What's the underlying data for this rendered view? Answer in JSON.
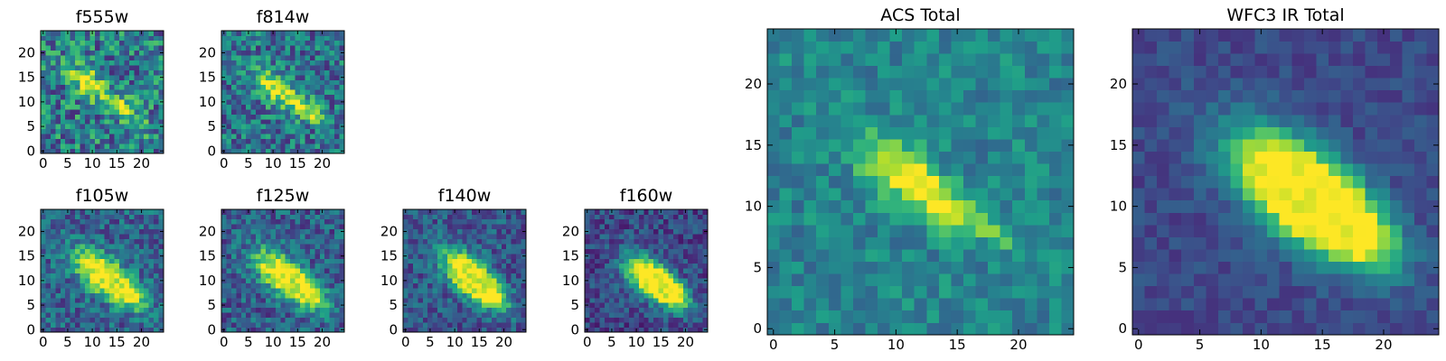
{
  "figure": {
    "colormap": "viridis"
  },
  "chart_data": [
    {
      "type": "heatmap",
      "title": "f555w",
      "xlim": [
        -0.5,
        24.5
      ],
      "ylim": [
        -0.5,
        24.5
      ],
      "xticks": [
        0,
        5,
        10,
        15,
        20
      ],
      "yticks": [
        0,
        5,
        10,
        15,
        20
      ],
      "xlabel": "",
      "ylabel": "",
      "source": {
        "knots": [
          [
            9,
            14,
            1.0,
            3.0
          ],
          [
            16,
            9,
            0.85,
            2.4
          ],
          [
            20,
            5,
            0.45,
            1.6
          ]
        ],
        "axis": [
          16,
          9
        ],
        "noise": 0.3,
        "floor": 0.42,
        "seed": 11,
        "shape": [
          25,
          25
        ]
      }
    },
    {
      "type": "heatmap",
      "title": "f814w",
      "xlim": [
        -0.5,
        24.5
      ],
      "ylim": [
        -0.5,
        24.5
      ],
      "xticks": [
        0,
        5,
        10,
        15,
        20
      ],
      "yticks": [
        0,
        5,
        10,
        15,
        20
      ],
      "xlabel": "",
      "ylabel": "",
      "source": {
        "knots": [
          [
            10,
            13,
            1.0,
            3.4
          ],
          [
            16,
            9,
            0.8,
            2.6
          ],
          [
            19,
            7,
            0.5,
            1.8
          ]
        ],
        "axis": [
          16,
          9
        ],
        "noise": 0.26,
        "floor": 0.38,
        "seed": 23,
        "shape": [
          25,
          25
        ]
      }
    },
    {
      "type": "heatmap",
      "title": "f105w",
      "xlim": [
        -0.5,
        24.5
      ],
      "ylim": [
        -0.5,
        24.5
      ],
      "xticks": [
        0,
        5,
        10,
        15,
        20
      ],
      "yticks": [
        0,
        5,
        10,
        15,
        20
      ],
      "xlabel": "",
      "ylabel": "",
      "source": {
        "knots": [
          [
            11,
            12,
            1.0,
            4.2
          ],
          [
            15,
            9,
            0.9,
            3.6
          ],
          [
            18,
            7,
            0.6,
            2.8
          ]
        ],
        "axis": [
          16,
          9
        ],
        "noise": 0.2,
        "floor": 0.32,
        "seed": 37,
        "shape": [
          25,
          25
        ]
      }
    },
    {
      "type": "heatmap",
      "title": "f125w",
      "xlim": [
        -0.5,
        24.5
      ],
      "ylim": [
        -0.5,
        24.5
      ],
      "xticks": [
        0,
        5,
        10,
        15,
        20
      ],
      "yticks": [
        0,
        5,
        10,
        15,
        20
      ],
      "xlabel": "",
      "ylabel": "",
      "source": {
        "knots": [
          [
            11,
            12,
            1.0,
            4.2
          ],
          [
            15,
            9,
            0.95,
            3.6
          ],
          [
            18,
            7,
            0.6,
            2.8
          ]
        ],
        "axis": [
          16,
          9
        ],
        "noise": 0.2,
        "floor": 0.3,
        "seed": 41,
        "shape": [
          25,
          25
        ]
      }
    },
    {
      "type": "heatmap",
      "title": "f140w",
      "xlim": [
        -0.5,
        24.5
      ],
      "ylim": [
        -0.5,
        24.5
      ],
      "xticks": [
        0,
        5,
        10,
        15,
        20
      ],
      "yticks": [
        0,
        5,
        10,
        15,
        20
      ],
      "xlabel": "",
      "ylabel": "",
      "source": {
        "knots": [
          [
            12,
            12,
            0.95,
            4.2
          ],
          [
            15,
            9,
            1.0,
            3.6
          ],
          [
            18,
            7,
            0.6,
            2.8
          ]
        ],
        "axis": [
          16,
          9
        ],
        "noise": 0.18,
        "floor": 0.28,
        "seed": 53,
        "shape": [
          25,
          25
        ]
      }
    },
    {
      "type": "heatmap",
      "title": "f160w",
      "xlim": [
        -0.5,
        24.5
      ],
      "ylim": [
        -0.5,
        24.5
      ],
      "xticks": [
        0,
        5,
        10,
        15,
        20
      ],
      "yticks": [
        0,
        5,
        10,
        15,
        20
      ],
      "xlabel": "",
      "ylabel": "",
      "source": {
        "knots": [
          [
            12,
            11,
            1.0,
            4.0
          ],
          [
            15,
            9,
            1.0,
            3.6
          ],
          [
            18,
            7,
            0.65,
            2.8
          ]
        ],
        "axis": [
          16,
          9
        ],
        "noise": 0.16,
        "floor": 0.22,
        "seed": 67,
        "shape": [
          25,
          25
        ]
      }
    },
    {
      "type": "heatmap",
      "title": "ACS Total",
      "xlim": [
        -0.5,
        24.5
      ],
      "ylim": [
        -0.5,
        24.5
      ],
      "xticks": [
        0,
        5,
        10,
        15,
        20
      ],
      "yticks": [
        0,
        5,
        10,
        15,
        20
      ],
      "xlabel": "",
      "ylabel": "",
      "source": {
        "knots": [
          [
            10,
            13,
            1.0,
            2.6
          ],
          [
            14,
            10,
            0.85,
            2.2
          ],
          [
            18,
            8,
            0.75,
            1.2
          ]
        ],
        "axis": [
          16,
          9
        ],
        "noise": 0.14,
        "floor": 0.45,
        "seed": 79,
        "shape": [
          25,
          25
        ]
      }
    },
    {
      "type": "heatmap",
      "title": "WFC3 IR Total",
      "xlim": [
        -0.5,
        24.5
      ],
      "ylim": [
        -0.5,
        24.5
      ],
      "xticks": [
        0,
        5,
        10,
        15,
        20
      ],
      "yticks": [
        0,
        5,
        10,
        15,
        20
      ],
      "xlabel": "",
      "ylabel": "",
      "source": {
        "knots": [
          [
            12,
            12,
            1.0,
            4.2
          ],
          [
            15,
            10,
            1.0,
            3.8
          ],
          [
            18,
            8,
            0.7,
            3.0
          ]
        ],
        "axis": [
          16,
          9
        ],
        "noise": 0.08,
        "floor": 0.22,
        "seed": 97,
        "shape": [
          25,
          25
        ]
      }
    }
  ]
}
